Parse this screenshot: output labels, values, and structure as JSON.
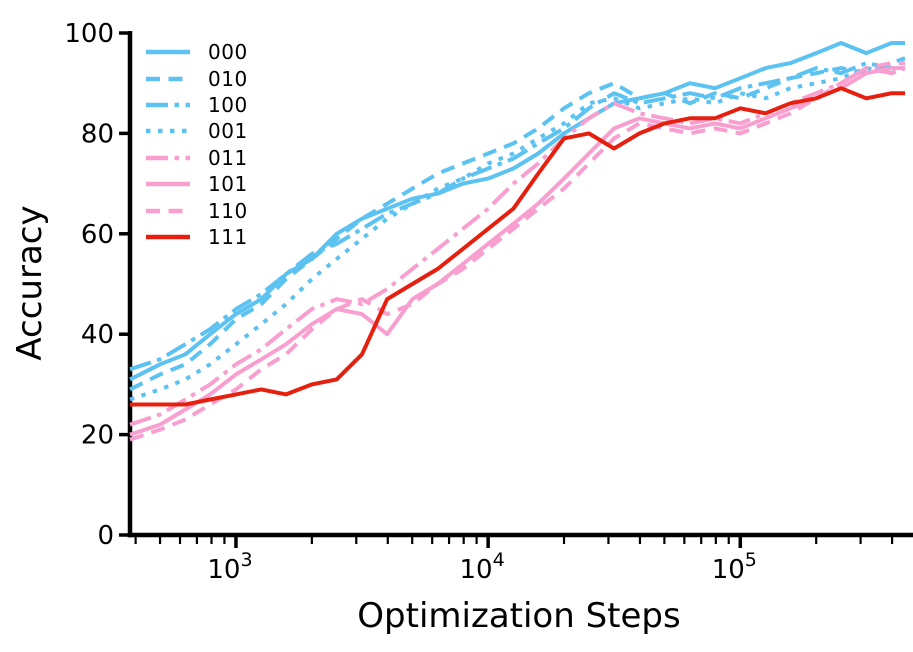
{
  "chart_data": {
    "type": "line",
    "title": "",
    "xlabel": "Optimization Steps",
    "ylabel": "Accuracy",
    "xscale": "log",
    "xlim": [
      380,
      450000
    ],
    "ylim": [
      0,
      100
    ],
    "grid": false,
    "legend_position": "upper-left",
    "y_ticks": [
      {
        "value": 0,
        "label": "0"
      },
      {
        "value": 20,
        "label": "20"
      },
      {
        "value": 40,
        "label": "40"
      },
      {
        "value": 60,
        "label": "60"
      },
      {
        "value": 80,
        "label": "80"
      },
      {
        "value": 100,
        "label": "100"
      }
    ],
    "x_ticks": [
      {
        "value": 1000,
        "base": "10",
        "exp": "3"
      },
      {
        "value": 10000,
        "base": "10",
        "exp": "4"
      },
      {
        "value": 100000,
        "base": "10",
        "exp": "5"
      }
    ],
    "x": [
      380,
      500,
      630,
      790,
      1000,
      1260,
      1580,
      2000,
      2510,
      3160,
      3980,
      5010,
      6310,
      7940,
      10000,
      12600,
      15800,
      20000,
      25100,
      31600,
      39800,
      50100,
      63100,
      79400,
      100000,
      126000,
      158000,
      200000,
      251000,
      316000,
      398000,
      450000
    ],
    "series": [
      {
        "name": "000",
        "color": "#5bc2f1",
        "style": "solid",
        "values": [
          31,
          34,
          36,
          40,
          44,
          47,
          52,
          55,
          60,
          63,
          65,
          67,
          68,
          70,
          71,
          73,
          76,
          80,
          83,
          86,
          87,
          88,
          90,
          89,
          91,
          93,
          94,
          96,
          98,
          96,
          98,
          98
        ]
      },
      {
        "name": "010",
        "color": "#5bc2f1",
        "style": "dashed",
        "values": [
          29,
          32,
          34,
          38,
          43,
          46,
          51,
          55,
          59,
          63,
          66,
          69,
          72,
          74,
          76,
          78,
          81,
          85,
          88,
          90,
          87,
          88,
          86,
          88,
          87,
          89,
          91,
          92,
          93,
          92,
          94,
          95
        ]
      },
      {
        "name": "100",
        "color": "#5bc2f1",
        "style": "dashdot",
        "values": [
          33,
          35,
          38,
          41,
          45,
          48,
          52,
          56,
          58,
          61,
          64,
          66,
          68,
          71,
          73,
          75,
          78,
          81,
          85,
          88,
          86,
          87,
          88,
          87,
          89,
          90,
          91,
          93,
          92,
          94,
          93,
          93
        ]
      },
      {
        "name": "001",
        "color": "#5bc2f1",
        "style": "dotted",
        "values": [
          27,
          29,
          31,
          34,
          38,
          42,
          46,
          51,
          55,
          59,
          63,
          66,
          69,
          71,
          74,
          76,
          79,
          82,
          86,
          87,
          85,
          86,
          87,
          86,
          88,
          87,
          89,
          90,
          91,
          93,
          92,
          93
        ]
      },
      {
        "name": "011",
        "color": "#f89fd0",
        "style": "dashdot",
        "values": [
          22,
          24,
          27,
          30,
          34,
          37,
          41,
          45,
          47,
          46,
          49,
          53,
          57,
          61,
          65,
          70,
          74,
          79,
          83,
          86,
          84,
          83,
          82,
          83,
          82,
          84,
          86,
          88,
          90,
          93,
          92,
          93
        ]
      },
      {
        "name": "101",
        "color": "#f89fd0",
        "style": "solid",
        "values": [
          20,
          22,
          25,
          28,
          32,
          35,
          38,
          42,
          45,
          44,
          40,
          47,
          50,
          54,
          58,
          62,
          66,
          71,
          76,
          81,
          83,
          82,
          81,
          82,
          81,
          83,
          85,
          87,
          89,
          92,
          93,
          93
        ]
      },
      {
        "name": "110",
        "color": "#f89fd0",
        "style": "dashed",
        "values": [
          19,
          21,
          23,
          26,
          29,
          33,
          36,
          41,
          45,
          47,
          44,
          46,
          50,
          53,
          57,
          61,
          65,
          69,
          74,
          79,
          82,
          81,
          80,
          81,
          80,
          82,
          84,
          87,
          90,
          93,
          94,
          94
        ]
      },
      {
        "name": "111",
        "color": "#e5200e",
        "style": "solid",
        "values": [
          26,
          26,
          26,
          27,
          28,
          29,
          28,
          30,
          31,
          36,
          47,
          50,
          53,
          57,
          61,
          65,
          72,
          79,
          80,
          77,
          80,
          82,
          83,
          83,
          85,
          84,
          86,
          87,
          89,
          87,
          88,
          88
        ]
      }
    ]
  }
}
